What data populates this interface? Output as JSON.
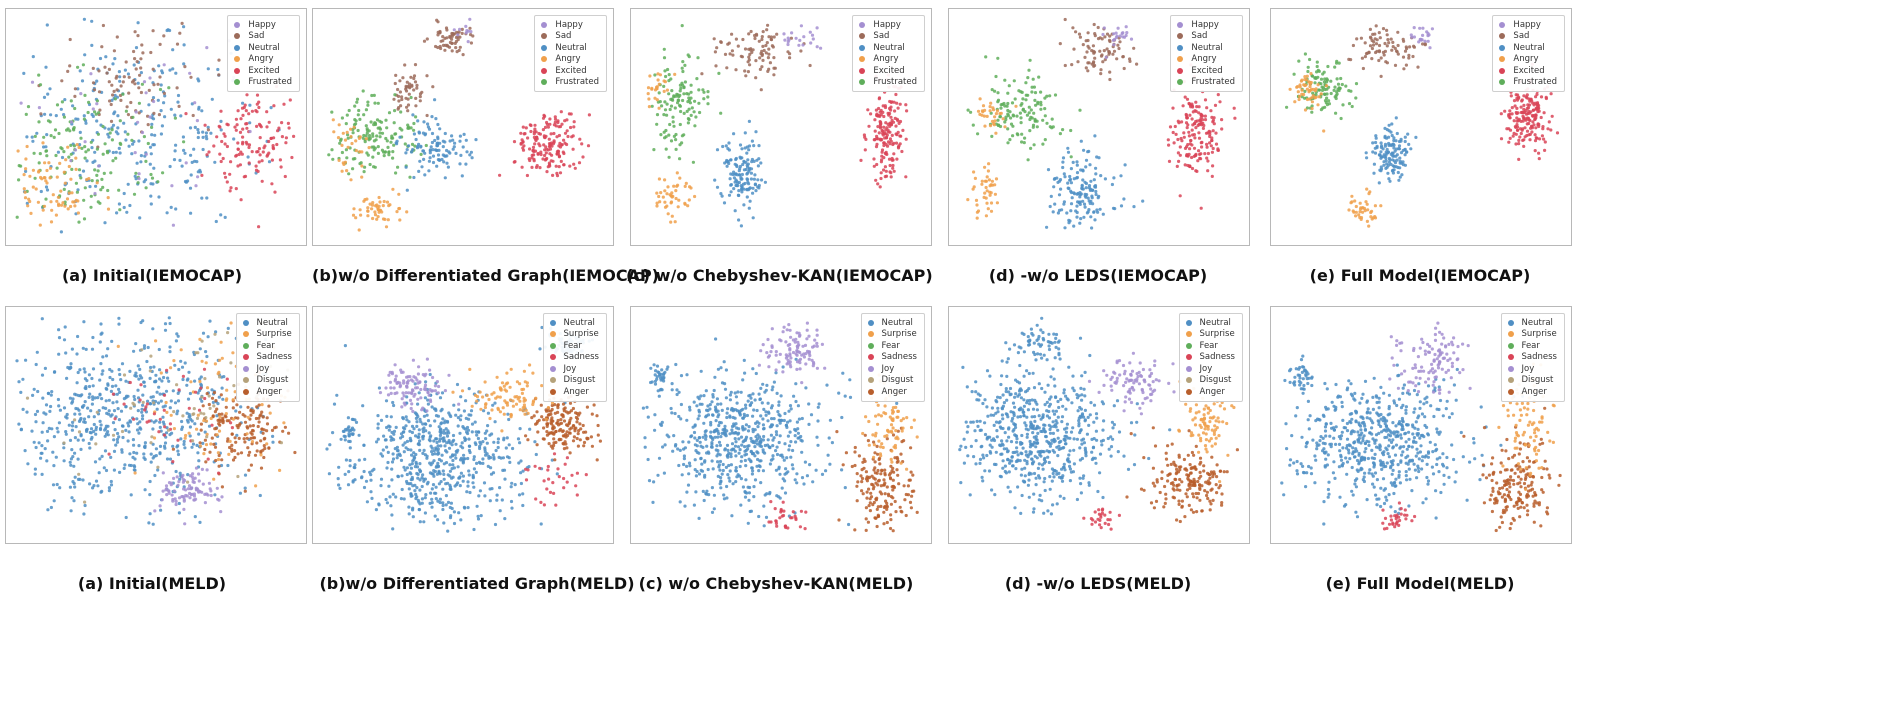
{
  "colors": {
    "Happy": "#a48fd1",
    "Sad": "#9c6b5a",
    "Neutral": "#4f8fc4",
    "Angry": "#f0a04b",
    "Excited": "#d94457",
    "Frustrated": "#5fae5b",
    "Surprise": "#f0a04b",
    "Fear": "#5fae5b",
    "Sadness": "#d94457",
    "Joy": "#a48fd1",
    "Disgust": "#b5a27a",
    "Anger": "#b85e2c"
  },
  "iemocap_legend": [
    "Happy",
    "Sad",
    "Neutral",
    "Angry",
    "Excited",
    "Frustrated"
  ],
  "meld_legend": [
    "Neutral",
    "Surprise",
    "Fear",
    "Sadness",
    "Joy",
    "Disgust",
    "Anger"
  ],
  "captions": {
    "iemocap": [
      "(a) Initial(IEMOCAP)",
      "(b)w/o Differentiated Graph(IEMOCAP)",
      "(c) w/o Chebyshev-KAN(IEMOCAP)",
      "(d) -w/o LEDS(IEMOCAP)",
      "(e) Full Model(IEMOCAP)"
    ],
    "meld": [
      "(a) Initial(MELD)",
      "(b)w/o Differentiated Graph(MELD)",
      "(c) w/o Chebyshev-KAN(MELD)",
      "(d) -w/o LEDS(MELD)",
      "(e) Full Model(MELD)"
    ]
  },
  "chart_data": [
    {
      "type": "scatter",
      "dataset": "IEMOCAP",
      "variant": "Initial",
      "xlim": [
        0,
        1
      ],
      "ylim": [
        0,
        1
      ],
      "clusters": [
        {
          "label": "Neutral",
          "cx": 0.42,
          "cy": 0.45,
          "sx": 0.22,
          "sy": 0.24,
          "n": 300
        },
        {
          "label": "Sad",
          "cx": 0.42,
          "cy": 0.72,
          "sx": 0.14,
          "sy": 0.12,
          "n": 90
        },
        {
          "label": "Frustrated",
          "cx": 0.24,
          "cy": 0.38,
          "sx": 0.14,
          "sy": 0.18,
          "n": 160
        },
        {
          "label": "Angry",
          "cx": 0.14,
          "cy": 0.22,
          "sx": 0.09,
          "sy": 0.1,
          "n": 80
        },
        {
          "label": "Excited",
          "cx": 0.84,
          "cy": 0.45,
          "sx": 0.08,
          "sy": 0.12,
          "n": 130
        },
        {
          "label": "Happy",
          "cx": 0.5,
          "cy": 0.55,
          "sx": 0.2,
          "sy": 0.2,
          "n": 40
        }
      ]
    },
    {
      "type": "scatter",
      "dataset": "IEMOCAP",
      "variant": "w/o Differentiated Graph",
      "xlim": [
        0,
        1
      ],
      "ylim": [
        0,
        1
      ],
      "clusters": [
        {
          "label": "Sad",
          "cx": 0.46,
          "cy": 0.9,
          "sx": 0.04,
          "sy": 0.04,
          "n": 60
        },
        {
          "label": "Sad",
          "cx": 0.31,
          "cy": 0.65,
          "sx": 0.035,
          "sy": 0.05,
          "n": 50
        },
        {
          "label": "Frustrated",
          "cx": 0.2,
          "cy": 0.46,
          "sx": 0.07,
          "sy": 0.09,
          "n": 150
        },
        {
          "label": "Neutral",
          "cx": 0.4,
          "cy": 0.4,
          "sx": 0.06,
          "sy": 0.07,
          "n": 110
        },
        {
          "label": "Excited",
          "cx": 0.8,
          "cy": 0.42,
          "sx": 0.06,
          "sy": 0.07,
          "n": 170
        },
        {
          "label": "Angry",
          "cx": 0.2,
          "cy": 0.12,
          "sx": 0.04,
          "sy": 0.03,
          "n": 50
        },
        {
          "label": "Angry",
          "cx": 0.1,
          "cy": 0.42,
          "sx": 0.03,
          "sy": 0.06,
          "n": 30
        },
        {
          "label": "Happy",
          "cx": 0.5,
          "cy": 0.93,
          "sx": 0.02,
          "sy": 0.02,
          "n": 10
        }
      ]
    },
    {
      "type": "scatter",
      "dataset": "IEMOCAP",
      "variant": "w/o Chebyshev-KAN",
      "xlim": [
        0,
        1
      ],
      "ylim": [
        0,
        1
      ],
      "clusters": [
        {
          "label": "Sad",
          "cx": 0.4,
          "cy": 0.84,
          "sx": 0.07,
          "sy": 0.06,
          "n": 90
        },
        {
          "label": "Happy",
          "cx": 0.56,
          "cy": 0.9,
          "sx": 0.03,
          "sy": 0.03,
          "n": 20
        },
        {
          "label": "Frustrated",
          "cx": 0.14,
          "cy": 0.6,
          "sx": 0.05,
          "sy": 0.12,
          "n": 120
        },
        {
          "label": "Neutral",
          "cx": 0.36,
          "cy": 0.28,
          "sx": 0.04,
          "sy": 0.1,
          "n": 140
        },
        {
          "label": "Angry",
          "cx": 0.12,
          "cy": 0.18,
          "sx": 0.035,
          "sy": 0.05,
          "n": 45
        },
        {
          "label": "Angry",
          "cx": 0.06,
          "cy": 0.68,
          "sx": 0.025,
          "sy": 0.04,
          "n": 25
        },
        {
          "label": "Excited",
          "cx": 0.87,
          "cy": 0.5,
          "sx": 0.035,
          "sy": 0.11,
          "n": 170
        }
      ]
    },
    {
      "type": "scatter",
      "dataset": "IEMOCAP",
      "variant": "-w/o LEDS",
      "xlim": [
        0,
        1
      ],
      "ylim": [
        0,
        1
      ],
      "clusters": [
        {
          "label": "Sad",
          "cx": 0.5,
          "cy": 0.84,
          "sx": 0.06,
          "sy": 0.06,
          "n": 80
        },
        {
          "label": "Happy",
          "cx": 0.58,
          "cy": 0.91,
          "sx": 0.03,
          "sy": 0.03,
          "n": 20
        },
        {
          "label": "Frustrated",
          "cx": 0.23,
          "cy": 0.58,
          "sx": 0.07,
          "sy": 0.09,
          "n": 130
        },
        {
          "label": "Angry",
          "cx": 0.12,
          "cy": 0.56,
          "sx": 0.03,
          "sy": 0.04,
          "n": 30
        },
        {
          "label": "Angry",
          "cx": 0.1,
          "cy": 0.22,
          "sx": 0.025,
          "sy": 0.06,
          "n": 40
        },
        {
          "label": "Neutral",
          "cx": 0.44,
          "cy": 0.2,
          "sx": 0.06,
          "sy": 0.09,
          "n": 150
        },
        {
          "label": "Excited",
          "cx": 0.84,
          "cy": 0.48,
          "sx": 0.045,
          "sy": 0.11,
          "n": 170
        }
      ]
    },
    {
      "type": "scatter",
      "dataset": "IEMOCAP",
      "variant": "Full Model",
      "xlim": [
        0,
        1
      ],
      "ylim": [
        0,
        1
      ],
      "clusters": [
        {
          "label": "Sad",
          "cx": 0.38,
          "cy": 0.86,
          "sx": 0.06,
          "sy": 0.05,
          "n": 80
        },
        {
          "label": "Happy",
          "cx": 0.51,
          "cy": 0.91,
          "sx": 0.025,
          "sy": 0.025,
          "n": 20
        },
        {
          "label": "Frustrated",
          "cx": 0.16,
          "cy": 0.68,
          "sx": 0.05,
          "sy": 0.06,
          "n": 110
        },
        {
          "label": "Angry",
          "cx": 0.1,
          "cy": 0.66,
          "sx": 0.03,
          "sy": 0.04,
          "n": 50
        },
        {
          "label": "Neutral",
          "cx": 0.39,
          "cy": 0.38,
          "sx": 0.035,
          "sy": 0.07,
          "n": 130
        },
        {
          "label": "Angry",
          "cx": 0.3,
          "cy": 0.12,
          "sx": 0.03,
          "sy": 0.04,
          "n": 40
        },
        {
          "label": "Excited",
          "cx": 0.87,
          "cy": 0.55,
          "sx": 0.045,
          "sy": 0.07,
          "n": 180
        }
      ]
    },
    {
      "type": "scatter",
      "dataset": "MELD",
      "variant": "Initial",
      "xlim": [
        0,
        1
      ],
      "ylim": [
        0,
        1
      ],
      "clusters": [
        {
          "label": "Neutral",
          "cx": 0.38,
          "cy": 0.55,
          "sx": 0.22,
          "sy": 0.2,
          "n": 650
        },
        {
          "label": "Anger",
          "cx": 0.8,
          "cy": 0.5,
          "sx": 0.08,
          "sy": 0.1,
          "n": 160
        },
        {
          "label": "Surprise",
          "cx": 0.72,
          "cy": 0.6,
          "sx": 0.12,
          "sy": 0.18,
          "n": 80
        },
        {
          "label": "Joy",
          "cx": 0.62,
          "cy": 0.2,
          "sx": 0.06,
          "sy": 0.05,
          "n": 90
        },
        {
          "label": "Sadness",
          "cx": 0.55,
          "cy": 0.55,
          "sx": 0.12,
          "sy": 0.12,
          "n": 40
        },
        {
          "label": "Disgust",
          "cx": 0.6,
          "cy": 0.6,
          "sx": 0.2,
          "sy": 0.2,
          "n": 60
        }
      ]
    },
    {
      "type": "scatter",
      "dataset": "MELD",
      "variant": "w/o Differentiated Graph",
      "xlim": [
        0,
        1
      ],
      "ylim": [
        0,
        1
      ],
      "clusters": [
        {
          "label": "Neutral",
          "cx": 0.4,
          "cy": 0.35,
          "sx": 0.16,
          "sy": 0.15,
          "n": 650
        },
        {
          "label": "Anger",
          "cx": 0.86,
          "cy": 0.5,
          "sx": 0.06,
          "sy": 0.06,
          "n": 170
        },
        {
          "label": "Joy",
          "cx": 0.33,
          "cy": 0.68,
          "sx": 0.05,
          "sy": 0.05,
          "n": 100
        },
        {
          "label": "Surprise",
          "cx": 0.66,
          "cy": 0.62,
          "sx": 0.06,
          "sy": 0.07,
          "n": 90
        },
        {
          "label": "Neutral",
          "cx": 0.87,
          "cy": 0.87,
          "sx": 0.04,
          "sy": 0.03,
          "n": 60
        },
        {
          "label": "Sadness",
          "cx": 0.8,
          "cy": 0.25,
          "sx": 0.05,
          "sy": 0.05,
          "n": 30
        },
        {
          "label": "Neutral",
          "cx": 0.1,
          "cy": 0.46,
          "sx": 0.015,
          "sy": 0.03,
          "n": 25
        }
      ]
    },
    {
      "type": "scatter",
      "dataset": "MELD",
      "variant": "w/o Chebyshev-KAN",
      "xlim": [
        0,
        1
      ],
      "ylim": [
        0,
        1
      ],
      "clusters": [
        {
          "label": "Neutral",
          "cx": 0.35,
          "cy": 0.42,
          "sx": 0.15,
          "sy": 0.15,
          "n": 620
        },
        {
          "label": "Neutral",
          "cx": 0.07,
          "cy": 0.72,
          "sx": 0.02,
          "sy": 0.03,
          "n": 35
        },
        {
          "label": "Joy",
          "cx": 0.55,
          "cy": 0.84,
          "sx": 0.05,
          "sy": 0.06,
          "n": 100
        },
        {
          "label": "Anger",
          "cx": 0.85,
          "cy": 0.22,
          "sx": 0.06,
          "sy": 0.1,
          "n": 180
        },
        {
          "label": "Surprise",
          "cx": 0.88,
          "cy": 0.5,
          "sx": 0.04,
          "sy": 0.1,
          "n": 80
        },
        {
          "label": "Sadness",
          "cx": 0.52,
          "cy": 0.08,
          "sx": 0.03,
          "sy": 0.03,
          "n": 30
        }
      ]
    },
    {
      "type": "scatter",
      "dataset": "MELD",
      "variant": "-w/o LEDS",
      "xlim": [
        0,
        1
      ],
      "ylim": [
        0,
        1
      ],
      "clusters": [
        {
          "label": "Neutral",
          "cx": 0.28,
          "cy": 0.45,
          "sx": 0.14,
          "sy": 0.14,
          "n": 600
        },
        {
          "label": "Neutral",
          "cx": 0.3,
          "cy": 0.88,
          "sx": 0.05,
          "sy": 0.04,
          "n": 60
        },
        {
          "label": "Joy",
          "cx": 0.62,
          "cy": 0.7,
          "sx": 0.05,
          "sy": 0.05,
          "n": 90
        },
        {
          "label": "Anger",
          "cx": 0.82,
          "cy": 0.25,
          "sx": 0.07,
          "sy": 0.08,
          "n": 180
        },
        {
          "label": "Surprise",
          "cx": 0.88,
          "cy": 0.5,
          "sx": 0.04,
          "sy": 0.08,
          "n": 80
        },
        {
          "label": "Sadness",
          "cx": 0.5,
          "cy": 0.08,
          "sx": 0.03,
          "sy": 0.03,
          "n": 25
        }
      ]
    },
    {
      "type": "scatter",
      "dataset": "MELD",
      "variant": "Full Model",
      "xlim": [
        0,
        1
      ],
      "ylim": [
        0,
        1
      ],
      "clusters": [
        {
          "label": "Neutral",
          "cx": 0.35,
          "cy": 0.42,
          "sx": 0.14,
          "sy": 0.14,
          "n": 600
        },
        {
          "label": "Neutral",
          "cx": 0.08,
          "cy": 0.72,
          "sx": 0.025,
          "sy": 0.03,
          "n": 40
        },
        {
          "label": "Joy",
          "cx": 0.55,
          "cy": 0.8,
          "sx": 0.06,
          "sy": 0.08,
          "n": 110
        },
        {
          "label": "Anger",
          "cx": 0.85,
          "cy": 0.22,
          "sx": 0.06,
          "sy": 0.1,
          "n": 180
        },
        {
          "label": "Surprise",
          "cx": 0.88,
          "cy": 0.5,
          "sx": 0.04,
          "sy": 0.1,
          "n": 80
        },
        {
          "label": "Sadness",
          "cx": 0.42,
          "cy": 0.08,
          "sx": 0.03,
          "sy": 0.03,
          "n": 30
        }
      ]
    }
  ]
}
